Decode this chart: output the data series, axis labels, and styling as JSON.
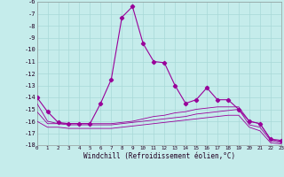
{
  "background_color": "#c5eceb",
  "grid_color": "#a8d8d7",
  "line_color": "#990099",
  "xlabel": "Windchill (Refroidissement éolien,°C)",
  "xlim": [
    0,
    23
  ],
  "ylim": [
    -18,
    -6
  ],
  "xticks": [
    0,
    1,
    2,
    3,
    4,
    5,
    6,
    7,
    8,
    9,
    10,
    11,
    12,
    13,
    14,
    15,
    16,
    17,
    18,
    19,
    20,
    21,
    22,
    23
  ],
  "yticks": [
    -6,
    -7,
    -8,
    -9,
    -10,
    -11,
    -12,
    -13,
    -14,
    -15,
    -16,
    -17,
    -18
  ],
  "series1_x": [
    0,
    1,
    2,
    3,
    4,
    5,
    6,
    7,
    8,
    9,
    10,
    11,
    12,
    13,
    14,
    15,
    16,
    17,
    18,
    19,
    20,
    21,
    22,
    23
  ],
  "series1_y": [
    -14.0,
    -15.2,
    -16.1,
    -16.2,
    -16.2,
    -16.2,
    -14.5,
    -12.5,
    -7.3,
    -6.4,
    -9.5,
    -11.0,
    -11.1,
    -13.0,
    -14.5,
    -14.2,
    -13.2,
    -14.2,
    -14.2,
    -15.0,
    -16.0,
    -16.2,
    -17.5,
    -17.6
  ],
  "series2_x": [
    0,
    1,
    2,
    3,
    4,
    5,
    6,
    7,
    8,
    9,
    10,
    11,
    12,
    13,
    14,
    15,
    16,
    17,
    18,
    19,
    20,
    21,
    22,
    23
  ],
  "series2_y": [
    -14.5,
    -16.0,
    -16.2,
    -16.2,
    -16.2,
    -16.2,
    -16.2,
    -16.2,
    -16.1,
    -16.0,
    -15.8,
    -15.6,
    -15.5,
    -15.3,
    -15.2,
    -15.0,
    -14.9,
    -14.8,
    -14.8,
    -14.8,
    -16.0,
    -16.2,
    -17.5,
    -17.7
  ],
  "series3_x": [
    0,
    1,
    2,
    3,
    4,
    5,
    6,
    7,
    8,
    9,
    10,
    11,
    12,
    13,
    14,
    15,
    16,
    17,
    18,
    19,
    20,
    21,
    22,
    23
  ],
  "series3_y": [
    -15.2,
    -16.2,
    -16.2,
    -16.3,
    -16.3,
    -16.3,
    -16.3,
    -16.3,
    -16.2,
    -16.1,
    -16.0,
    -15.9,
    -15.8,
    -15.7,
    -15.6,
    -15.4,
    -15.3,
    -15.2,
    -15.1,
    -15.0,
    -16.3,
    -16.5,
    -17.6,
    -17.8
  ],
  "series4_x": [
    0,
    1,
    2,
    3,
    4,
    5,
    6,
    7,
    8,
    9,
    10,
    11,
    12,
    13,
    14,
    15,
    16,
    17,
    18,
    19,
    20,
    21,
    22,
    23
  ],
  "series4_y": [
    -16.0,
    -16.5,
    -16.5,
    -16.6,
    -16.6,
    -16.6,
    -16.6,
    -16.6,
    -16.5,
    -16.4,
    -16.3,
    -16.2,
    -16.1,
    -16.0,
    -15.9,
    -15.8,
    -15.7,
    -15.6,
    -15.5,
    -15.5,
    -16.5,
    -16.8,
    -17.8,
    -17.9
  ]
}
